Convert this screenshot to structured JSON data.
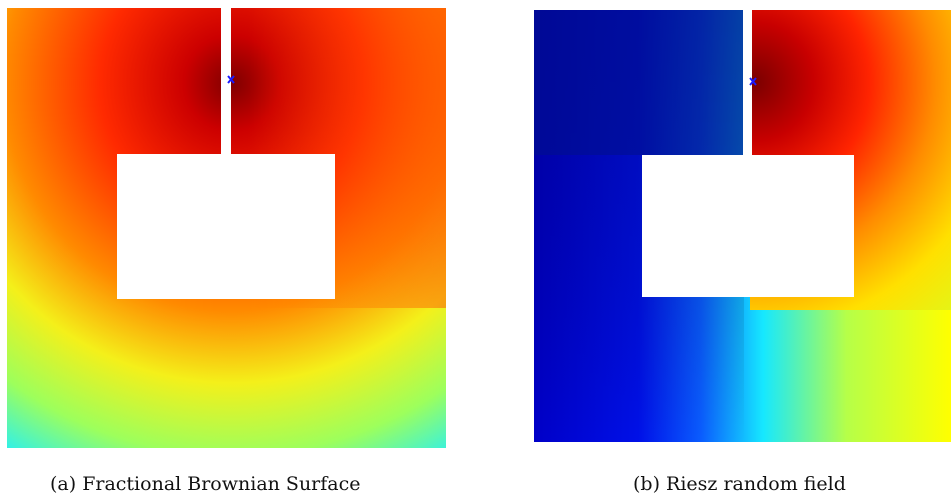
{
  "figure": {
    "panels": [
      {
        "id": "a",
        "caption": "(a) Fractional Brownian Surface",
        "colormap": "jet",
        "marker": "x",
        "marker_color": "#1a1aff"
      },
      {
        "id": "b",
        "caption": "(b) Riesz random field",
        "colormap": "jet",
        "marker": "x",
        "marker_color": "#1a1aff"
      }
    ]
  }
}
